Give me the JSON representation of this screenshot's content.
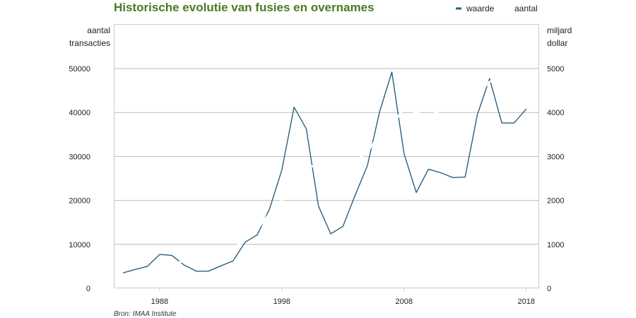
{
  "chart_data": {
    "type": "line",
    "title": "Historische evolutie van fusies en overnames",
    "source": "Bron: IMAA Institute",
    "colors": {
      "title": "#4a7a22",
      "waarde": "#2c5f7c",
      "aantal": "#ffffff",
      "grid": "#bbbbbb",
      "frame": "#cccccc"
    },
    "grid": true,
    "legend_position": "top-right",
    "y_left": {
      "label_lines": [
        "aantal",
        "transacties"
      ],
      "ylim": [
        0,
        50000
      ],
      "ticks": [
        "0",
        "10000",
        "20000",
        "30000",
        "40000",
        "50000"
      ]
    },
    "y_right": {
      "label_lines": [
        "miljard",
        "dollar"
      ],
      "ylim": [
        0,
        5000
      ],
      "ticks": [
        "0",
        "1000",
        "2000",
        "3000",
        "4000",
        "5000"
      ]
    },
    "x": {
      "range": [
        1984.25,
        2019
      ],
      "ticks": [
        "1988",
        "1998",
        "2008",
        "2018"
      ]
    },
    "series": [
      {
        "name": "waarde",
        "axis": "right",
        "x": [
          1985,
          1986,
          1987,
          1988,
          1989,
          1990,
          1991,
          1992,
          1993,
          1994,
          1995,
          1996,
          1997,
          1998,
          1999,
          2000,
          2001,
          2002,
          2003,
          2004,
          2005,
          2006,
          2007,
          2008,
          2009,
          2010,
          2011,
          2012,
          2013,
          2014,
          2015,
          2016,
          2017,
          2018
        ],
        "values": [
          350,
          430,
          500,
          770,
          750,
          530,
          390,
          390,
          510,
          620,
          1050,
          1220,
          1810,
          2690,
          4120,
          3630,
          1870,
          1240,
          1410,
          2120,
          2790,
          4020,
          4920,
          3060,
          2180,
          2710,
          2630,
          2520,
          2530,
          3950,
          4770,
          3760,
          3760,
          4080
        ]
      },
      {
        "name": "aantal",
        "axis": "left",
        "x": [
          1985,
          1986,
          1987,
          1988,
          1989,
          1990,
          1991,
          1992,
          1993,
          1994,
          1995,
          1996,
          1997,
          1998,
          1999,
          2000,
          2001,
          2002,
          2003,
          2004,
          2005,
          2006,
          2007,
          2008,
          2009,
          2010,
          2011,
          2012,
          2013,
          2014,
          2015,
          2016,
          2017,
          2018
        ],
        "values": [
          2500,
          3000,
          3600,
          4500,
          5500,
          6200,
          7000,
          7600,
          8200,
          9000,
          11000,
          13500,
          17000,
          20000,
          23500,
          28000,
          27500,
          27000,
          27500,
          29000,
          31000,
          35000,
          37000,
          41000,
          40000,
          39000,
          40500,
          41500,
          42000,
          44000,
          47000,
          48000,
          48500,
          49000
        ]
      }
    ]
  }
}
